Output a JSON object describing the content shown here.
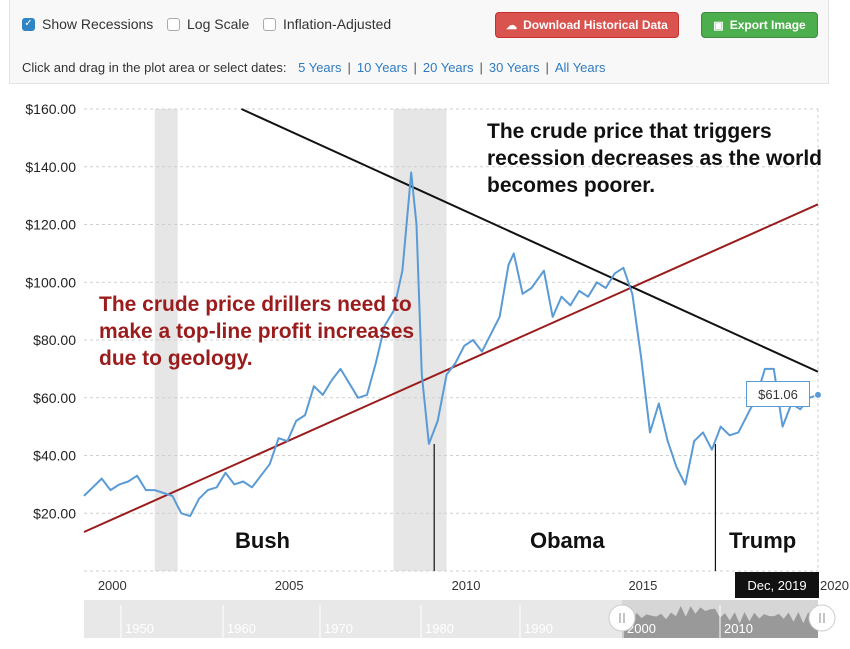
{
  "controls": {
    "show_recessions": {
      "label": "Show Recessions",
      "checked": true
    },
    "log_scale": {
      "label": "Log Scale",
      "checked": false
    },
    "inflation_adjusted": {
      "label": "Inflation-Adjusted",
      "checked": false
    },
    "download_label": "Download Historical Data",
    "export_label": "Export Image",
    "hint": "Click and drag in the plot area or select dates:",
    "ranges": [
      "5 Years",
      "10 Years",
      "20 Years",
      "30 Years",
      "All Years"
    ],
    "colors": {
      "download": "#d9534f",
      "export": "#4cae4c",
      "link": "#2f7bbf"
    }
  },
  "chart_data": {
    "type": "line",
    "xlim": [
      1999.2,
      2019.95
    ],
    "ylim": [
      0,
      160
    ],
    "yticks": [
      "$20.00",
      "$40.00",
      "$60.00",
      "$80.00",
      "$100.00",
      "$120.00",
      "$140.00",
      "$160.00"
    ],
    "ytick_values": [
      20,
      40,
      60,
      80,
      100,
      120,
      140,
      160
    ],
    "xticks": [
      "2000",
      "2005",
      "2010",
      "2015",
      "2020"
    ],
    "xtick_values": [
      2000,
      2005,
      2010,
      2015,
      2020
    ],
    "series": [
      {
        "color": "#5b9bd5",
        "x": [
          1999.2,
          1999.45,
          1999.7,
          1999.95,
          2000.2,
          2000.45,
          2000.7,
          2000.95,
          2001.2,
          2001.45,
          2001.7,
          2001.95,
          2002.2,
          2002.45,
          2002.7,
          2002.95,
          2003.2,
          2003.45,
          2003.7,
          2003.95,
          2004.2,
          2004.45,
          2004.7,
          2004.95,
          2005.2,
          2005.45,
          2005.7,
          2005.95,
          2006.2,
          2006.45,
          2006.7,
          2006.95,
          2007.2,
          2007.45,
          2007.7,
          2007.95,
          2008.2,
          2008.45,
          2008.6,
          2008.75,
          2008.95,
          2009.2,
          2009.45,
          2009.7,
          2009.95,
          2010.2,
          2010.45,
          2010.7,
          2010.95,
          2011.2,
          2011.35,
          2011.6,
          2011.85,
          2012.2,
          2012.45,
          2012.7,
          2012.95,
          2013.2,
          2013.45,
          2013.7,
          2013.95,
          2014.2,
          2014.45,
          2014.7,
          2014.95,
          2015.2,
          2015.45,
          2015.7,
          2015.95,
          2016.2,
          2016.45,
          2016.7,
          2016.95,
          2017.2,
          2017.45,
          2017.7,
          2017.95,
          2018.2,
          2018.45,
          2018.7,
          2018.95,
          2019.2,
          2019.45,
          2019.7,
          2019.95
        ],
        "y": [
          26,
          29,
          32,
          28,
          30,
          31,
          33,
          28,
          28,
          27,
          26,
          20,
          19,
          25,
          28,
          29,
          34,
          30,
          31,
          29,
          33,
          37,
          46,
          45,
          52,
          54,
          64,
          61,
          66,
          70,
          65,
          60,
          61,
          72,
          85,
          90,
          104,
          138,
          120,
          68,
          44,
          52,
          68,
          72,
          78,
          80,
          76,
          82,
          88,
          106,
          110,
          96,
          98,
          104,
          88,
          95,
          92,
          97,
          95,
          100,
          98,
          103,
          105,
          96,
          74,
          48,
          58,
          45,
          36,
          30,
          45,
          48,
          42,
          50,
          47,
          48,
          54,
          60,
          70,
          70,
          50,
          58,
          56,
          60,
          61
        ],
        "last_label": "$61.06"
      }
    ],
    "recessions": [
      [
        2001.2,
        2001.85
      ],
      [
        2007.95,
        2009.45
      ]
    ],
    "annotations": {
      "top_right": "The crude price that triggers recession decreases as the world becomes poorer.",
      "left": "The crude price drillers need to make a top-line profit increases due to geology."
    },
    "trendlines": {
      "black": {
        "color": "#111111",
        "from": [
          2003.65,
          160
        ],
        "to": [
          2019.95,
          69
        ]
      },
      "red": {
        "color": "#9b1c1c",
        "from": [
          1999.2,
          13.5
        ],
        "to": [
          2019.95,
          127
        ]
      }
    },
    "presidents": [
      {
        "name": "Bush",
        "x": 2004.9
      },
      {
        "name": "Obama",
        "x": 2013.1
      },
      {
        "name": "Trump",
        "x": 2018.9
      }
    ],
    "term_markers": [
      2009.1,
      2017.05
    ],
    "crosshair_date": "Dec, 2019",
    "navigator_ticks": [
      "1950",
      "1960",
      "1970",
      "1980",
      "1990",
      "2000",
      "2010"
    ]
  }
}
